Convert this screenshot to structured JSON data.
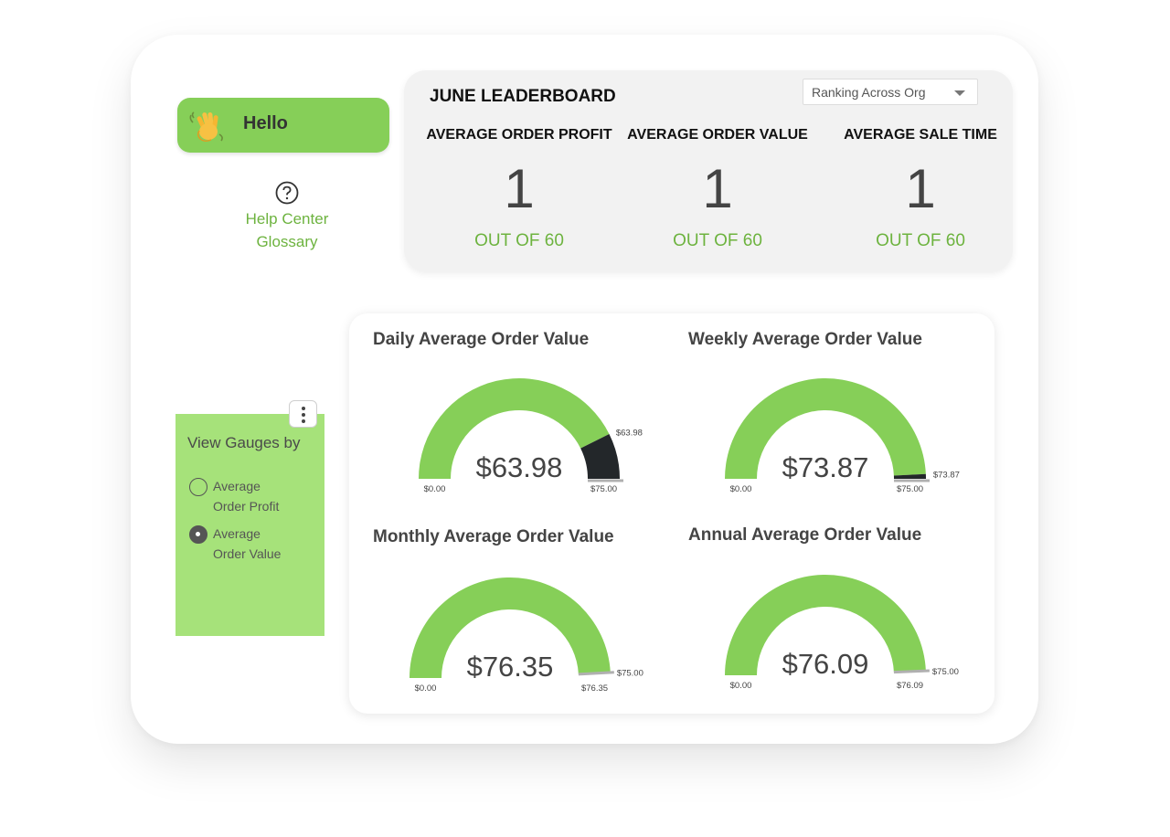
{
  "sidebar": {
    "hello_label": "Hello",
    "help_link_line1": "Help Center",
    "help_link_line2": "Glossary"
  },
  "leaderboard": {
    "title": "JUNE LEADERBOARD",
    "ranking_select_value": "Ranking Across Org",
    "metrics": [
      {
        "label": "AVERAGE ORDER PROFIT",
        "rank": "1",
        "out_of": "OUT OF 60"
      },
      {
        "label": "AVERAGE ORDER VALUE",
        "rank": "1",
        "out_of": "OUT OF 60"
      },
      {
        "label": "AVERAGE SALE TIME",
        "rank": "1",
        "out_of": "OUT OF 60"
      }
    ]
  },
  "filter": {
    "title": "View Gauges by",
    "options": [
      {
        "line1": "Average",
        "line2": "Order Profit",
        "selected": false
      },
      {
        "line1": "Average",
        "line2": "Order Value",
        "selected": true
      }
    ]
  },
  "colors": {
    "accent_green": "#86cf58",
    "panel_green": "#a6e27a",
    "link_green": "#6db33f",
    "gauge_overflow": "#23272a"
  },
  "chart_data": [
    {
      "type": "gauge",
      "title": "Daily Average Order Value",
      "value": 63.98,
      "value_label": "$63.98",
      "min": 0,
      "min_label": "$0.00",
      "target": 75,
      "target_label": "$75.00",
      "marker_label": "$63.98"
    },
    {
      "type": "gauge",
      "title": "Weekly Average Order Value",
      "value": 73.87,
      "value_label": "$73.87",
      "min": 0,
      "min_label": "$0.00",
      "target": 75,
      "target_label": "$75.00",
      "marker_label": "$73.87"
    },
    {
      "type": "gauge",
      "title": "Monthly Average Order Value",
      "value": 76.35,
      "value_label": "$76.35",
      "min": 0,
      "min_label": "$0.00",
      "target": 75,
      "target_label": "$75.00",
      "marker_label": "$76.35"
    },
    {
      "type": "gauge",
      "title": "Annual Average Order Value",
      "value": 76.09,
      "value_label": "$76.09",
      "min": 0,
      "min_label": "$0.00",
      "target": 75,
      "target_label": "$75.00",
      "marker_label": "$76.09"
    }
  ]
}
